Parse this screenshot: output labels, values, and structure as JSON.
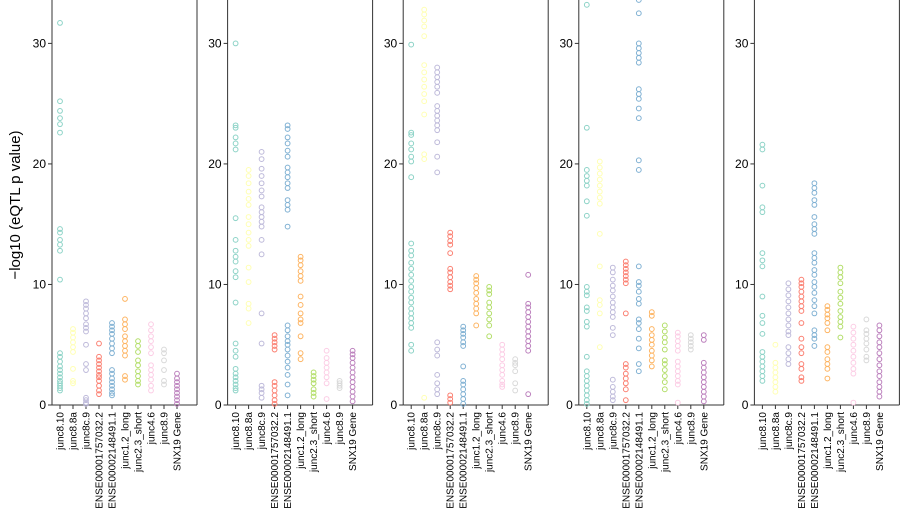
{
  "chart_data": {
    "type": "scatter",
    "subtype": "strip",
    "ylabel": "−log10 (eQTL p value)",
    "ylim": [
      0,
      33.6
    ],
    "yticks": [
      0,
      10,
      20,
      30
    ],
    "grid": false,
    "marker": "open-circle",
    "categories": [
      "junc8.10",
      "junc8.8a",
      "junc8c.9",
      "ENSE00001757032.2",
      "ENSE00002148491.1",
      "junc1.2_long",
      "junc2.3_short",
      "junc4.6",
      "junc8.9",
      "SNX19 Gene"
    ],
    "colors": [
      "#8DD3C7",
      "#FFFFB3",
      "#BEBADA",
      "#FB8072",
      "#80B1D3",
      "#FDB462",
      "#B3DE69",
      "#FCCDE5",
      "#D9D9D9",
      "#BC80BD"
    ],
    "panels": [
      {
        "values": [
          [
            31.7,
            25.2,
            24.4,
            23.8,
            23.3,
            22.6,
            14.6,
            14.3,
            13.7,
            13.3,
            12.8,
            10.4,
            4.3,
            4.0,
            3.6,
            3.2,
            2.9,
            2.6,
            2.3,
            2.0,
            1.8,
            1.6,
            1.4,
            1.2
          ],
          [
            6.3,
            6.0,
            5.6,
            5.2,
            4.8,
            4.4,
            3.0,
            2.0,
            1.8
          ],
          [
            8.6,
            8.3,
            8.0,
            7.6,
            7.2,
            6.7,
            6.4,
            6.1,
            5.0,
            3.4,
            2.9,
            0.6,
            0.4,
            0.2,
            0.1
          ],
          [
            5.1,
            4.0,
            3.7,
            3.4,
            3.1,
            2.8,
            2.5,
            2.3,
            2.0,
            1.6,
            1.2,
            0.9
          ],
          [
            6.8,
            6.5,
            6.2,
            5.9,
            5.5,
            5.1,
            4.7,
            4.3,
            2.9,
            2.6,
            2.2,
            1.9,
            1.6,
            1.3,
            1.0,
            0.8
          ],
          [
            8.8,
            7.1,
            6.7,
            6.3,
            5.7,
            5.3,
            4.9,
            4.5,
            4.1,
            2.4,
            2.1
          ],
          [
            5.3,
            4.9,
            4.4,
            3.7,
            3.3,
            2.8,
            2.4,
            2.0,
            1.7
          ],
          [
            6.7,
            6.2,
            5.7,
            5.3,
            4.8,
            4.3,
            3.3,
            2.9,
            2.5,
            2.1,
            1.6,
            1.2
          ],
          [
            4.6,
            4.3,
            3.7,
            2.9,
            2.0,
            1.7
          ],
          [
            2.6,
            2.2,
            1.9,
            1.6,
            1.3,
            1.0,
            0.7,
            0.4,
            0.1
          ]
        ]
      },
      {
        "values": [
          [
            30.0,
            23.2,
            23.0,
            22.2,
            21.7,
            21.2,
            15.5,
            13.7,
            12.8,
            12.3,
            11.9,
            11.1,
            10.6,
            8.5,
            5.1,
            4.5,
            4.0,
            3.0,
            2.6,
            2.3,
            2.0,
            1.7,
            1.4,
            1.2
          ],
          [
            19.5,
            19.0,
            18.4,
            17.7,
            17.1,
            16.6,
            15.6,
            15.0,
            14.3,
            13.7,
            13.2,
            11.4,
            10.2,
            8.4,
            8.0,
            6.8
          ],
          [
            21.0,
            20.4,
            19.6,
            19.0,
            18.4,
            17.8,
            17.3,
            16.4,
            16.0,
            15.6,
            15.2,
            14.8,
            13.7,
            12.5,
            7.6,
            5.1,
            1.6,
            1.3,
            1.0,
            0.6
          ],
          [
            5.8,
            5.5,
            5.2,
            4.9,
            4.6,
            1.9,
            1.6,
            1.2,
            0.8,
            0.4,
            0.1
          ],
          [
            23.2,
            22.9,
            22.2,
            21.7,
            21.1,
            20.6,
            19.7,
            19.3,
            18.9,
            18.4,
            18.0,
            17.0,
            16.6,
            16.2,
            14.8,
            6.6,
            6.2,
            5.7,
            5.3,
            5.0,
            4.6,
            4.1,
            3.6,
            3.1,
            2.5,
            1.7,
            0.8
          ],
          [
            12.3,
            12.0,
            11.6,
            11.1,
            10.7,
            10.3,
            9.0,
            8.3,
            7.6,
            7.1,
            6.8,
            5.7,
            4.3,
            3.8
          ],
          [
            2.7,
            2.4,
            2.1,
            1.8,
            1.3,
            1.0,
            0.7
          ],
          [
            4.5,
            3.9,
            3.5,
            3.1,
            2.7,
            2.3,
            1.8,
            0.5
          ],
          [
            2.0,
            1.8,
            1.6,
            1.4
          ],
          [
            4.5,
            4.2,
            3.9,
            3.5,
            3.1,
            2.7,
            2.3,
            1.9,
            1.5,
            1.1,
            0.7,
            0.3
          ]
        ]
      },
      {
        "values": [
          [
            29.9,
            22.6,
            22.4,
            21.7,
            21.2,
            20.6,
            20.2,
            18.9,
            13.4,
            12.8,
            12.4,
            11.8,
            11.3,
            10.8,
            10.3,
            9.8,
            9.4,
            8.9,
            8.5,
            8.0,
            7.6,
            7.2,
            6.8,
            6.4,
            5.0,
            4.5
          ],
          [
            32.8,
            32.4,
            31.9,
            31.4,
            30.6,
            28.2,
            27.6,
            27.0,
            26.4,
            25.8,
            25.2,
            24.1,
            20.8,
            20.4,
            0.6
          ],
          [
            28.0,
            27.6,
            27.2,
            26.8,
            26.4,
            25.9,
            24.8,
            24.4,
            24.0,
            23.6,
            23.2,
            22.8,
            21.8,
            20.6,
            19.3,
            5.2,
            4.6,
            4.1,
            2.5,
            1.8,
            1.3,
            0.9
          ],
          [
            14.3,
            14.0,
            13.6,
            13.3,
            12.6,
            11.3,
            11.0,
            10.6,
            10.2,
            9.9,
            9.6,
            0.8,
            0.5,
            0.2
          ],
          [
            6.5,
            6.2,
            5.9,
            5.6,
            5.2,
            4.9,
            3.2,
            2.0,
            1.7,
            1.3,
            0.9,
            0.5,
            0.1
          ],
          [
            10.7,
            10.4,
            10.1,
            9.7,
            9.3,
            8.8,
            8.4,
            8.0,
            7.6,
            6.6
          ],
          [
            9.8,
            9.5,
            9.2,
            8.5,
            8.1,
            7.6,
            7.1,
            6.6,
            5.7
          ],
          [
            5.0,
            4.6,
            4.2,
            3.8,
            3.3,
            2.9,
            2.5,
            2.0,
            1.7,
            1.5
          ],
          [
            3.8,
            3.5,
            3.3,
            2.8,
            1.8,
            1.2
          ],
          [
            10.8,
            8.4,
            8.1,
            7.7,
            7.3,
            6.9,
            6.5,
            6.1,
            5.7,
            5.3,
            4.9,
            4.5,
            0.9
          ]
        ]
      },
      {
        "values": [
          [
            33.2,
            23.0,
            19.5,
            19.0,
            18.6,
            18.2,
            16.9,
            15.7,
            9.8,
            9.4,
            9.1,
            8.1,
            7.8,
            6.9,
            6.5,
            4.0,
            2.8,
            2.4,
            2.0,
            1.6,
            1.2,
            0.8,
            0.4,
            0.1
          ],
          [
            20.2,
            19.7,
            19.2,
            18.7,
            18.2,
            17.7,
            17.2,
            16.7,
            14.2,
            11.5,
            8.7,
            8.3,
            7.6,
            4.8
          ],
          [
            11.4,
            11.0,
            10.4,
            9.9,
            9.5,
            9.0,
            8.5,
            8.1,
            7.7,
            7.3,
            6.4,
            5.8,
            2.1,
            1.5,
            1.1,
            0.7,
            0.4
          ],
          [
            11.9,
            11.6,
            11.3,
            11.0,
            10.7,
            10.4,
            10.1,
            7.6,
            3.4,
            3.1,
            2.6,
            2.2,
            1.8,
            1.3,
            0.4
          ],
          [
            33.6,
            32.5,
            30.0,
            29.6,
            29.2,
            28.8,
            28.4,
            26.2,
            25.8,
            25.4,
            24.6,
            23.8,
            20.3,
            19.5,
            11.5,
            10.2,
            9.9,
            9.4,
            8.8,
            8.4,
            7.1,
            6.8,
            6.3,
            5.5,
            4.7,
            3.4,
            2.8
          ],
          [
            7.7,
            7.4,
            6.3,
            5.8,
            5.4,
            5.0,
            4.5,
            4.1,
            3.7,
            3.2
          ],
          [
            6.6,
            6.1,
            5.6,
            5.2,
            4.6,
            3.7,
            3.4,
            2.9,
            2.4,
            1.9,
            1.3
          ],
          [
            6.0,
            5.7,
            5.3,
            4.9,
            4.5,
            3.6,
            3.2,
            2.8,
            2.4,
            2.0,
            1.7,
            0.2
          ],
          [
            5.8,
            5.5,
            5.2,
            4.9,
            4.6
          ],
          [
            5.8,
            5.4,
            3.5,
            3.1,
            2.7,
            2.3,
            1.9,
            1.5,
            1.1,
            0.7,
            0.3
          ]
        ]
      },
      {
        "values": [
          [
            21.6,
            21.2,
            18.2,
            16.4,
            16.0,
            12.6,
            12.0,
            11.5,
            9.0,
            7.4,
            6.8,
            5.9,
            4.4,
            4.0,
            3.6,
            3.2,
            2.8,
            2.4,
            2.0
          ],
          [
            5.0,
            3.5,
            3.1,
            2.7,
            2.3,
            1.9,
            1.5,
            1.1
          ],
          [
            10.1,
            9.6,
            9.1,
            8.6,
            8.1,
            7.6,
            7.1,
            6.6,
            6.1,
            5.8,
            4.8,
            4.3,
            3.8,
            3.4
          ],
          [
            10.4,
            10.1,
            9.8,
            9.4,
            9.0,
            8.6,
            8.2,
            7.8,
            6.8,
            5.5,
            4.8,
            4.3,
            3.4,
            3.0,
            2.3,
            2.0
          ],
          [
            18.4,
            18.0,
            17.6,
            17.0,
            16.6,
            15.6,
            15.0,
            14.6,
            14.2,
            12.6,
            12.2,
            11.8,
            11.2,
            10.8,
            10.2,
            9.8,
            9.3,
            8.7,
            8.2,
            7.6,
            6.2,
            5.8,
            5.5,
            4.9
          ],
          [
            8.2,
            7.9,
            7.5,
            7.2,
            6.8,
            6.2,
            4.8,
            4.4,
            3.8,
            3.4,
            3.0,
            2.2
          ],
          [
            11.4,
            11.0,
            10.6,
            10.1,
            9.4,
            8.9,
            8.4,
            7.8,
            7.3,
            6.9,
            6.5,
            5.6
          ],
          [
            6.5,
            6.0,
            5.5,
            5.0,
            4.5,
            4.0,
            3.5,
            3.0,
            2.6,
            0.2
          ],
          [
            7.1,
            6.2,
            5.9,
            5.5,
            5.1,
            4.6,
            4.0,
            3.7
          ],
          [
            6.6,
            6.2,
            5.7,
            5.2,
            4.8,
            4.3,
            3.8,
            3.3,
            2.8,
            2.4,
            1.9,
            1.5,
            1.1,
            0.7
          ]
        ]
      }
    ]
  }
}
